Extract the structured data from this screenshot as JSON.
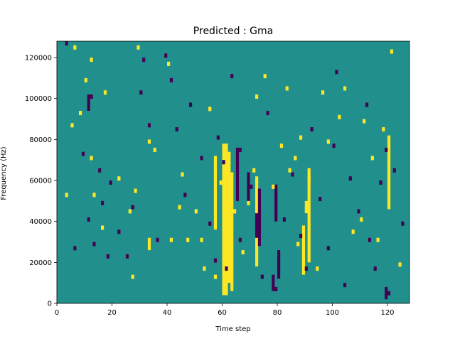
{
  "chart_data": {
    "type": "heatmap",
    "title": "Predicted : Gma",
    "xlabel": "Time step",
    "ylabel": "Frequency (Hz)",
    "xlim": [
      0,
      128
    ],
    "ylim": [
      0,
      128000
    ],
    "x_ticks": [
      0,
      20,
      40,
      60,
      80,
      100,
      120
    ],
    "y_ticks": [
      0,
      20000,
      40000,
      60000,
      80000,
      100000,
      120000
    ],
    "grid": false,
    "legend": "none",
    "grid_cols": 128,
    "grid_rows": 64,
    "cell_height_hz": 2000,
    "colors": {
      "background": "#21908d",
      "high": "#fde725",
      "low": "#440154"
    },
    "high_cells": [
      [
        5,
        86
      ],
      [
        6,
        124
      ],
      [
        8,
        92
      ],
      [
        12,
        118
      ],
      [
        12,
        70
      ],
      [
        13,
        52
      ],
      [
        16,
        36
      ],
      [
        17,
        102
      ],
      [
        26,
        44
      ],
      [
        28,
        54
      ],
      [
        29,
        124
      ],
      [
        33,
        78
      ],
      [
        40,
        116
      ],
      [
        41,
        30
      ],
      [
        44,
        46
      ],
      [
        47,
        30
      ],
      [
        52,
        30
      ],
      [
        53,
        16
      ],
      [
        57,
        12
      ],
      [
        59,
        58
      ],
      [
        62,
        38
      ],
      [
        64,
        44
      ],
      [
        67,
        24
      ],
      [
        71,
        64
      ],
      [
        72,
        100
      ],
      [
        75,
        110
      ],
      [
        78,
        56
      ],
      [
        81,
        76
      ],
      [
        84,
        64
      ],
      [
        87,
        28
      ],
      [
        88,
        80
      ],
      [
        91,
        60
      ],
      [
        94,
        16
      ],
      [
        96,
        102
      ],
      [
        98,
        78
      ],
      [
        102,
        90
      ],
      [
        104,
        104
      ],
      [
        110,
        40
      ],
      [
        111,
        88
      ],
      [
        114,
        70
      ],
      [
        116,
        30
      ],
      [
        118,
        84
      ],
      [
        121,
        122
      ],
      [
        124,
        18
      ],
      [
        22,
        60
      ],
      [
        35,
        74
      ],
      [
        50,
        44
      ],
      [
        69,
        48
      ],
      [
        86,
        70
      ],
      [
        107,
        34
      ],
      [
        3,
        52
      ],
      [
        10,
        108
      ],
      [
        27,
        12
      ],
      [
        45,
        62
      ],
      [
        55,
        94
      ],
      [
        83,
        104
      ]
    ],
    "low_cells": [
      [
        3,
        126
      ],
      [
        6,
        26
      ],
      [
        11,
        40
      ],
      [
        12,
        100
      ],
      [
        15,
        64
      ],
      [
        16,
        48
      ],
      [
        18,
        22
      ],
      [
        22,
        34
      ],
      [
        25,
        22
      ],
      [
        27,
        46
      ],
      [
        30,
        102
      ],
      [
        33,
        86
      ],
      [
        36,
        30
      ],
      [
        39,
        120
      ],
      [
        41,
        108
      ],
      [
        46,
        52
      ],
      [
        48,
        96
      ],
      [
        52,
        70
      ],
      [
        55,
        38
      ],
      [
        58,
        80
      ],
      [
        60,
        68
      ],
      [
        61,
        16
      ],
      [
        63,
        110
      ],
      [
        66,
        74
      ],
      [
        70,
        56
      ],
      [
        73,
        42
      ],
      [
        76,
        92
      ],
      [
        79,
        6
      ],
      [
        82,
        40
      ],
      [
        85,
        62
      ],
      [
        88,
        32
      ],
      [
        92,
        84
      ],
      [
        95,
        50
      ],
      [
        98,
        26
      ],
      [
        101,
        112
      ],
      [
        104,
        8
      ],
      [
        106,
        60
      ],
      [
        109,
        44
      ],
      [
        112,
        96
      ],
      [
        113,
        30
      ],
      [
        115,
        16
      ],
      [
        117,
        58
      ],
      [
        119,
        74
      ],
      [
        120,
        4
      ],
      [
        125,
        38
      ],
      [
        9,
        72
      ],
      [
        19,
        58
      ],
      [
        31,
        118
      ],
      [
        43,
        84
      ],
      [
        57,
        20
      ],
      [
        74,
        12
      ],
      [
        90,
        16
      ],
      [
        100,
        76
      ],
      [
        122,
        64
      ],
      [
        13,
        28
      ],
      [
        66,
        30
      ]
    ],
    "high_bands": [
      {
        "x": 60,
        "y0": 4,
        "y1": 76
      },
      {
        "x": 61,
        "y0": 4,
        "y1": 76
      },
      {
        "x": 62,
        "y0": 10,
        "y1": 72
      },
      {
        "x": 63,
        "y0": 6,
        "y1": 62
      },
      {
        "x": 57,
        "y0": 36,
        "y1": 70
      },
      {
        "x": 72,
        "y0": 18,
        "y1": 60
      },
      {
        "x": 89,
        "y0": 14,
        "y1": 36
      },
      {
        "x": 91,
        "y0": 20,
        "y1": 64
      },
      {
        "x": 90,
        "y0": 44,
        "y1": 48
      },
      {
        "x": 120,
        "y0": 46,
        "y1": 80
      },
      {
        "x": 33,
        "y0": 26,
        "y1": 30
      }
    ],
    "low_bands": [
      {
        "x": 65,
        "y0": 50,
        "y1": 74
      },
      {
        "x": 69,
        "y0": 48,
        "y1": 62
      },
      {
        "x": 72,
        "y0": 32,
        "y1": 42
      },
      {
        "x": 73,
        "y0": 28,
        "y1": 54
      },
      {
        "x": 78,
        "y0": 6,
        "y1": 12
      },
      {
        "x": 79,
        "y0": 40,
        "y1": 56
      },
      {
        "x": 80,
        "y0": 12,
        "y1": 24
      },
      {
        "x": 11,
        "y0": 94,
        "y1": 100
      },
      {
        "x": 119,
        "y0": 2,
        "y1": 6
      }
    ]
  }
}
